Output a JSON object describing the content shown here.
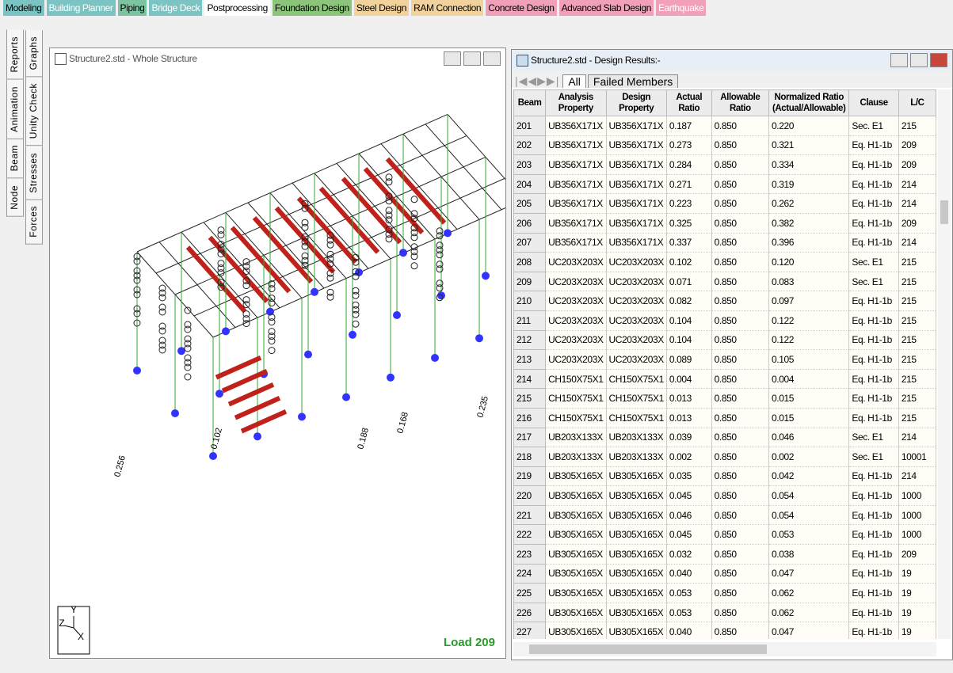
{
  "top_tabs": [
    "Modeling",
    "Building Planner",
    "Piping",
    "Bridge Deck",
    "Postprocessing",
    "Foundation Design",
    "Steel Design",
    "RAM Connection",
    "Concrete Design",
    "Advanced Slab Design",
    "Earthquake"
  ],
  "side_tabs_left": [
    "Node",
    "Beam",
    "Animation",
    "Reports"
  ],
  "side_tabs_right": [
    "Forces",
    "Stresses",
    "Unity Check",
    "Graphs"
  ],
  "model_window": {
    "title": "Structure2.std - Whole Structure",
    "load_label": "Load 209",
    "axes": [
      "Y",
      "Z",
      "X"
    ],
    "member_labels": [
      "0.256",
      "0.102",
      "0.168",
      "0.235",
      "0.188"
    ]
  },
  "results_window": {
    "title": "Structure2.std - Design Results:-",
    "tabs": [
      "All",
      "Failed Members"
    ],
    "table": {
      "headers": [
        "Beam",
        "Analysis Property",
        "Design Property",
        "Actual Ratio",
        "Allowable Ratio",
        "Normalized Ratio (Actual/Allowable)",
        "Clause",
        "L/C"
      ],
      "rows": [
        [
          "201",
          "UB356X171X",
          "UB356X171X",
          "0.187",
          "0.850",
          "0.220",
          "Sec. E1",
          "215"
        ],
        [
          "202",
          "UB356X171X",
          "UB356X171X",
          "0.273",
          "0.850",
          "0.321",
          "Eq. H1-1b",
          "209"
        ],
        [
          "203",
          "UB356X171X",
          "UB356X171X",
          "0.284",
          "0.850",
          "0.334",
          "Eq. H1-1b",
          "209"
        ],
        [
          "204",
          "UB356X171X",
          "UB356X171X",
          "0.271",
          "0.850",
          "0.319",
          "Eq. H1-1b",
          "214"
        ],
        [
          "205",
          "UB356X171X",
          "UB356X171X",
          "0.223",
          "0.850",
          "0.262",
          "Eq. H1-1b",
          "214"
        ],
        [
          "206",
          "UB356X171X",
          "UB356X171X",
          "0.325",
          "0.850",
          "0.382",
          "Eq. H1-1b",
          "209"
        ],
        [
          "207",
          "UB356X171X",
          "UB356X171X",
          "0.337",
          "0.850",
          "0.396",
          "Eq. H1-1b",
          "214"
        ],
        [
          "208",
          "UC203X203X",
          "UC203X203X",
          "0.102",
          "0.850",
          "0.120",
          "Sec. E1",
          "215"
        ],
        [
          "209",
          "UC203X203X",
          "UC203X203X",
          "0.071",
          "0.850",
          "0.083",
          "Sec. E1",
          "215"
        ],
        [
          "210",
          "UC203X203X",
          "UC203X203X",
          "0.082",
          "0.850",
          "0.097",
          "Eq. H1-1b",
          "215"
        ],
        [
          "211",
          "UC203X203X",
          "UC203X203X",
          "0.104",
          "0.850",
          "0.122",
          "Eq. H1-1b",
          "215"
        ],
        [
          "212",
          "UC203X203X",
          "UC203X203X",
          "0.104",
          "0.850",
          "0.122",
          "Eq. H1-1b",
          "215"
        ],
        [
          "213",
          "UC203X203X",
          "UC203X203X",
          "0.089",
          "0.850",
          "0.105",
          "Eq. H1-1b",
          "215"
        ],
        [
          "214",
          "CH150X75X1",
          "CH150X75X1",
          "0.004",
          "0.850",
          "0.004",
          "Eq. H1-1b",
          "215"
        ],
        [
          "215",
          "CH150X75X1",
          "CH150X75X1",
          "0.013",
          "0.850",
          "0.015",
          "Eq. H1-1b",
          "215"
        ],
        [
          "216",
          "CH150X75X1",
          "CH150X75X1",
          "0.013",
          "0.850",
          "0.015",
          "Eq. H1-1b",
          "215"
        ],
        [
          "217",
          "UB203X133X",
          "UB203X133X",
          "0.039",
          "0.850",
          "0.046",
          "Sec. E1",
          "214"
        ],
        [
          "218",
          "UB203X133X",
          "UB203X133X",
          "0.002",
          "0.850",
          "0.002",
          "Sec. E1",
          "10001"
        ],
        [
          "219",
          "UB305X165X",
          "UB305X165X",
          "0.035",
          "0.850",
          "0.042",
          "Eq. H1-1b",
          "214"
        ],
        [
          "220",
          "UB305X165X",
          "UB305X165X",
          "0.045",
          "0.850",
          "0.054",
          "Eq. H1-1b",
          "1000"
        ],
        [
          "221",
          "UB305X165X",
          "UB305X165X",
          "0.046",
          "0.850",
          "0.054",
          "Eq. H1-1b",
          "1000"
        ],
        [
          "222",
          "UB305X165X",
          "UB305X165X",
          "0.045",
          "0.850",
          "0.053",
          "Eq. H1-1b",
          "1000"
        ],
        [
          "223",
          "UB305X165X",
          "UB305X165X",
          "0.032",
          "0.850",
          "0.038",
          "Eq. H1-1b",
          "209"
        ],
        [
          "224",
          "UB305X165X",
          "UB305X165X",
          "0.040",
          "0.850",
          "0.047",
          "Eq. H1-1b",
          "19"
        ],
        [
          "225",
          "UB305X165X",
          "UB305X165X",
          "0.053",
          "0.850",
          "0.062",
          "Eq. H1-1b",
          "19"
        ],
        [
          "226",
          "UB305X165X",
          "UB305X165X",
          "0.053",
          "0.850",
          "0.062",
          "Eq. H1-1b",
          "19"
        ],
        [
          "227",
          "UB305X165X",
          "UB305X165X",
          "0.040",
          "0.850",
          "0.047",
          "Eq. H1-1b",
          "19"
        ]
      ]
    }
  }
}
